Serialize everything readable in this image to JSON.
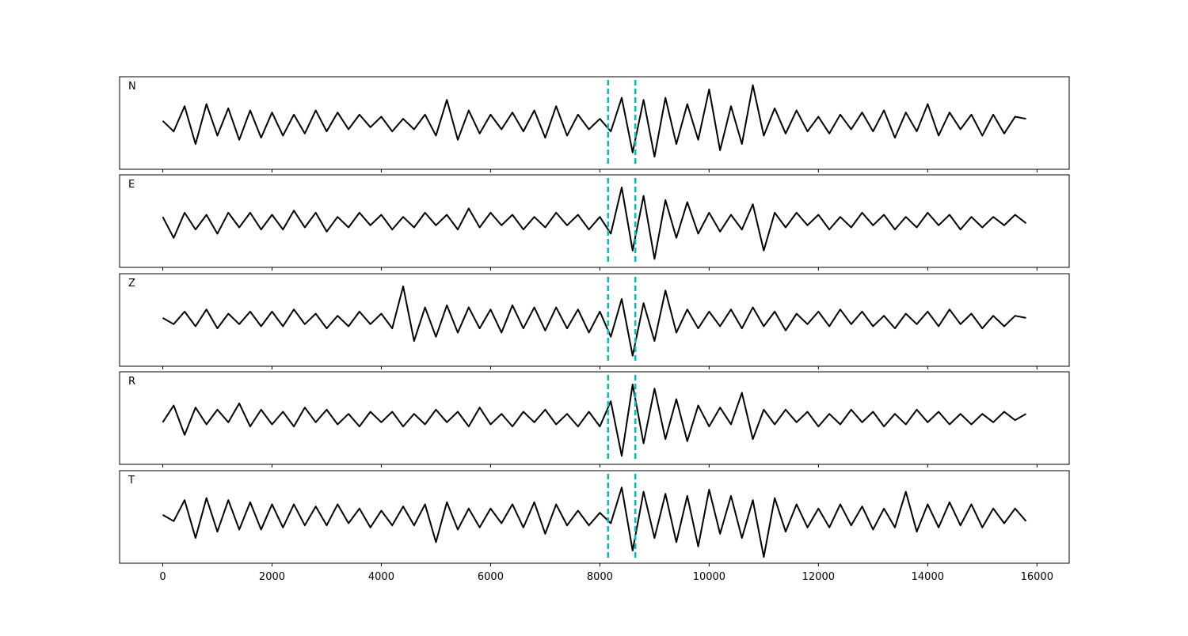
{
  "chart_data": {
    "type": "line",
    "x": [
      0,
      200,
      400,
      600,
      800,
      1000,
      1200,
      1400,
      1600,
      1800,
      2000,
      2200,
      2400,
      2600,
      2800,
      3000,
      3200,
      3400,
      3600,
      3800,
      4000,
      4200,
      4400,
      4600,
      4800,
      5000,
      5200,
      5400,
      5600,
      5800,
      6000,
      6200,
      6400,
      6600,
      6800,
      7000,
      7200,
      7400,
      7600,
      7800,
      8000,
      8200,
      8400,
      8600,
      8800,
      9000,
      9200,
      9400,
      9600,
      9800,
      10000,
      10200,
      10400,
      10600,
      10800,
      11000,
      11200,
      11400,
      11600,
      11800,
      12000,
      12200,
      12400,
      12600,
      12800,
      13000,
      13200,
      13400,
      13600,
      13800,
      14000,
      14200,
      14400,
      14600,
      14800,
      15000,
      15200,
      15400,
      15600,
      15800
    ],
    "xlim": [
      -790,
      16590
    ],
    "xticks": [
      0,
      2000,
      4000,
      6000,
      8000,
      10000,
      12000,
      14000,
      16000
    ],
    "ylim": [
      -1.1,
      1.1
    ],
    "vlines": [
      8150,
      8650
    ],
    "vline_color": "#00bfbf",
    "series": [
      {
        "name": "N",
        "color": "#000000",
        "values": [
          0.05,
          -0.2,
          0.4,
          -0.5,
          0.45,
          -0.3,
          0.35,
          -0.4,
          0.3,
          -0.35,
          0.25,
          -0.3,
          0.2,
          -0.25,
          0.3,
          -0.2,
          0.25,
          -0.15,
          0.2,
          -0.1,
          0.15,
          -0.2,
          0.1,
          -0.15,
          0.2,
          -0.3,
          0.55,
          -0.4,
          0.3,
          -0.25,
          0.2,
          -0.15,
          0.25,
          -0.2,
          0.3,
          -0.35,
          0.4,
          -0.3,
          0.2,
          -0.15,
          0.1,
          -0.2,
          0.6,
          -0.7,
          0.55,
          -0.8,
          0.6,
          -0.5,
          0.45,
          -0.4,
          0.8,
          -0.65,
          0.4,
          -0.5,
          0.9,
          -0.3,
          0.35,
          -0.25,
          0.3,
          -0.2,
          0.15,
          -0.25,
          0.2,
          -0.15,
          0.25,
          -0.2,
          0.3,
          -0.35,
          0.25,
          -0.2,
          0.45,
          -0.3,
          0.25,
          -0.15,
          0.2,
          -0.3,
          0.2,
          -0.25,
          0.15,
          0.1
        ]
      },
      {
        "name": "E",
        "color": "#000000",
        "values": [
          0.1,
          -0.4,
          0.2,
          -0.2,
          0.15,
          -0.3,
          0.2,
          -0.15,
          0.2,
          -0.2,
          0.15,
          -0.2,
          0.25,
          -0.15,
          0.2,
          -0.25,
          0.1,
          -0.15,
          0.2,
          -0.1,
          0.15,
          -0.2,
          0.1,
          -0.15,
          0.2,
          -0.1,
          0.15,
          -0.2,
          0.3,
          -0.15,
          0.2,
          -0.1,
          0.15,
          -0.2,
          0.1,
          -0.15,
          0.2,
          -0.1,
          0.15,
          -0.2,
          0.1,
          -0.3,
          0.8,
          -0.7,
          0.6,
          -0.9,
          0.5,
          -0.4,
          0.45,
          -0.3,
          0.2,
          -0.25,
          0.15,
          -0.2,
          0.4,
          -0.7,
          0.2,
          -0.15,
          0.2,
          -0.1,
          0.15,
          -0.2,
          0.1,
          -0.15,
          0.2,
          -0.1,
          0.15,
          -0.2,
          0.1,
          -0.15,
          0.2,
          -0.1,
          0.15,
          -0.2,
          0.1,
          -0.15,
          0.1,
          -0.1,
          0.15,
          -0.05
        ]
      },
      {
        "name": "Z",
        "color": "#000000",
        "values": [
          0.05,
          -0.1,
          0.2,
          -0.15,
          0.25,
          -0.2,
          0.15,
          -0.1,
          0.2,
          -0.15,
          0.2,
          -0.15,
          0.25,
          -0.1,
          0.15,
          -0.2,
          0.1,
          -0.15,
          0.2,
          -0.1,
          0.15,
          -0.2,
          0.8,
          -0.5,
          0.3,
          -0.4,
          0.35,
          -0.3,
          0.3,
          -0.2,
          0.25,
          -0.3,
          0.35,
          -0.2,
          0.3,
          -0.25,
          0.3,
          -0.2,
          0.25,
          -0.3,
          0.2,
          -0.4,
          0.5,
          -0.85,
          0.4,
          -0.5,
          0.7,
          -0.3,
          0.25,
          -0.2,
          0.2,
          -0.15,
          0.25,
          -0.2,
          0.3,
          -0.15,
          0.2,
          -0.25,
          0.15,
          -0.1,
          0.2,
          -0.15,
          0.25,
          -0.1,
          0.2,
          -0.15,
          0.1,
          -0.2,
          0.15,
          -0.1,
          0.2,
          -0.15,
          0.25,
          -0.1,
          0.15,
          -0.2,
          0.1,
          -0.15,
          0.1,
          0.05
        ]
      },
      {
        "name": "R",
        "color": "#000000",
        "values": [
          -0.1,
          0.3,
          -0.4,
          0.25,
          -0.15,
          0.2,
          -0.1,
          0.35,
          -0.2,
          0.2,
          -0.15,
          0.15,
          -0.2,
          0.25,
          -0.1,
          0.2,
          -0.15,
          0.1,
          -0.2,
          0.15,
          -0.1,
          0.15,
          -0.2,
          0.1,
          -0.15,
          0.2,
          -0.1,
          0.15,
          -0.2,
          0.25,
          -0.15,
          0.1,
          -0.2,
          0.15,
          -0.1,
          0.2,
          -0.15,
          0.1,
          -0.2,
          0.15,
          -0.2,
          0.4,
          -0.9,
          0.8,
          -0.6,
          0.7,
          -0.5,
          0.45,
          -0.55,
          0.3,
          -0.2,
          0.25,
          -0.15,
          0.6,
          -0.5,
          0.2,
          -0.15,
          0.2,
          -0.1,
          0.15,
          -0.2,
          0.1,
          -0.15,
          0.2,
          -0.1,
          0.15,
          -0.2,
          0.1,
          -0.15,
          0.2,
          -0.1,
          0.15,
          -0.15,
          0.1,
          -0.15,
          0.1,
          -0.1,
          0.15,
          -0.05,
          0.1
        ]
      },
      {
        "name": "T",
        "color": "#000000",
        "values": [
          0.05,
          -0.1,
          0.4,
          -0.5,
          0.45,
          -0.35,
          0.4,
          -0.3,
          0.35,
          -0.3,
          0.3,
          -0.25,
          0.3,
          -0.2,
          0.25,
          -0.2,
          0.3,
          -0.15,
          0.2,
          -0.25,
          0.15,
          -0.2,
          0.25,
          -0.2,
          0.3,
          -0.6,
          0.35,
          -0.3,
          0.2,
          -0.25,
          0.2,
          -0.15,
          0.3,
          -0.25,
          0.35,
          -0.4,
          0.3,
          -0.2,
          0.15,
          -0.2,
          0.1,
          -0.15,
          0.7,
          -0.8,
          0.6,
          -0.5,
          0.55,
          -0.6,
          0.5,
          -0.7,
          0.65,
          -0.4,
          0.5,
          -0.5,
          0.4,
          -0.95,
          0.45,
          -0.35,
          0.3,
          -0.25,
          0.2,
          -0.25,
          0.3,
          -0.2,
          0.25,
          -0.3,
          0.2,
          -0.25,
          0.6,
          -0.35,
          0.3,
          -0.25,
          0.35,
          -0.2,
          0.3,
          -0.25,
          0.2,
          -0.15,
          0.2,
          -0.1
        ]
      }
    ]
  }
}
